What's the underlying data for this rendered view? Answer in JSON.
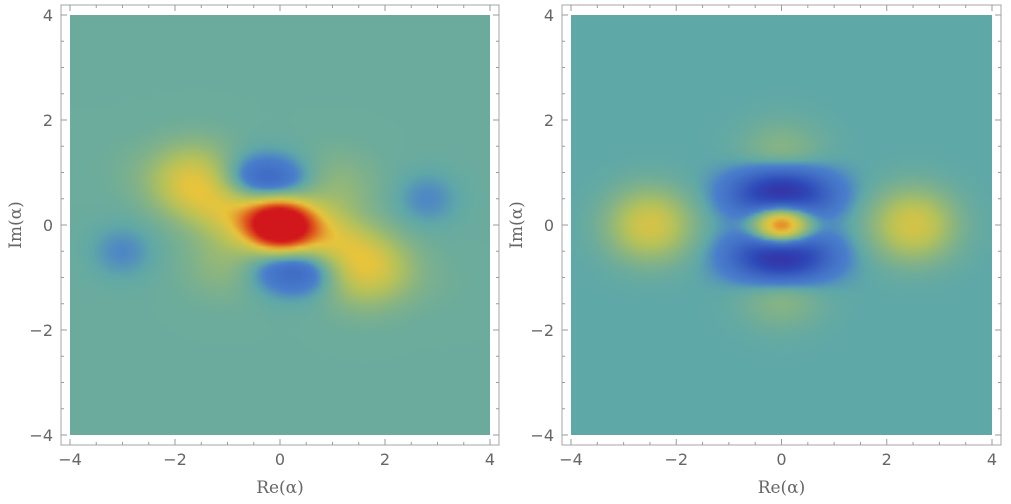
{
  "chart_data": [
    {
      "type": "heatmap",
      "xlabel": "Re(α)",
      "ylabel": "Im(α)",
      "xlim": [
        -4,
        4
      ],
      "ylim": [
        -4,
        4
      ],
      "x_ticks": [
        "−4",
        "−2",
        "0",
        "2",
        "4"
      ],
      "y_ticks": [
        "−4",
        "−2",
        "0",
        "2",
        "4"
      ],
      "grid": false,
      "colormap": [
        "#3f1a8f",
        "#2e48b8",
        "#4a7fcc",
        "#5fa8a8",
        "#b5c25a",
        "#e8c43c",
        "#e0601e",
        "#d1171c"
      ],
      "background_value": 0.04,
      "features": [
        {
          "kind": "ridge",
          "x": 0.0,
          "y": 0.0,
          "angle_deg": -20,
          "length": 2.6,
          "width": 0.42,
          "value": 0.62
        },
        {
          "kind": "peak",
          "x": 0.0,
          "y": 0.0,
          "value": 1.0
        },
        {
          "kind": "trough",
          "x": -0.35,
          "y": 0.8,
          "value": -0.45
        },
        {
          "kind": "trough",
          "x": 0.35,
          "y": -0.8,
          "value": -0.45
        },
        {
          "kind": "trough",
          "x": 2.8,
          "y": 0.5,
          "value": -0.12
        },
        {
          "kind": "trough",
          "x": -3.0,
          "y": -0.5,
          "value": -0.12
        },
        {
          "kind": "bump",
          "x": -1.6,
          "y": 0.9,
          "value": 0.3
        },
        {
          "kind": "bump",
          "x": 1.6,
          "y": -0.9,
          "value": 0.3
        },
        {
          "kind": "bump",
          "x": 1.0,
          "y": 0.7,
          "value": 0.15
        },
        {
          "kind": "bump",
          "x": -1.0,
          "y": -0.7,
          "value": 0.15
        }
      ]
    },
    {
      "type": "heatmap",
      "xlabel": "Re(α)",
      "ylabel": "Im(α)",
      "xlim": [
        -4,
        4
      ],
      "ylim": [
        -4,
        4
      ],
      "x_ticks": [
        "−4",
        "−2",
        "0",
        "2",
        "4"
      ],
      "y_ticks": [
        "−4",
        "−2",
        "0",
        "2",
        "4"
      ],
      "grid": false,
      "colormap": [
        "#3f1a8f",
        "#2e48b8",
        "#4a7fcc",
        "#5fa8a8",
        "#b5c25a",
        "#e8c43c",
        "#e0601e",
        "#d1171c"
      ],
      "background_value": 0.0,
      "features": [
        {
          "kind": "peak",
          "x": 0.0,
          "y": 0.0,
          "value": 1.0
        },
        {
          "kind": "trough",
          "x": 0.0,
          "y": 0.6,
          "value": -0.9
        },
        {
          "kind": "trough",
          "x": 0.0,
          "y": -0.6,
          "value": -0.9
        },
        {
          "kind": "bump",
          "x": -2.5,
          "y": 0.0,
          "value": 0.42
        },
        {
          "kind": "bump",
          "x": 2.5,
          "y": 0.0,
          "value": 0.42
        },
        {
          "kind": "bump",
          "x": 0.0,
          "y": 1.25,
          "value": 0.18
        },
        {
          "kind": "bump",
          "x": 0.0,
          "y": -1.25,
          "value": 0.18
        }
      ]
    }
  ]
}
